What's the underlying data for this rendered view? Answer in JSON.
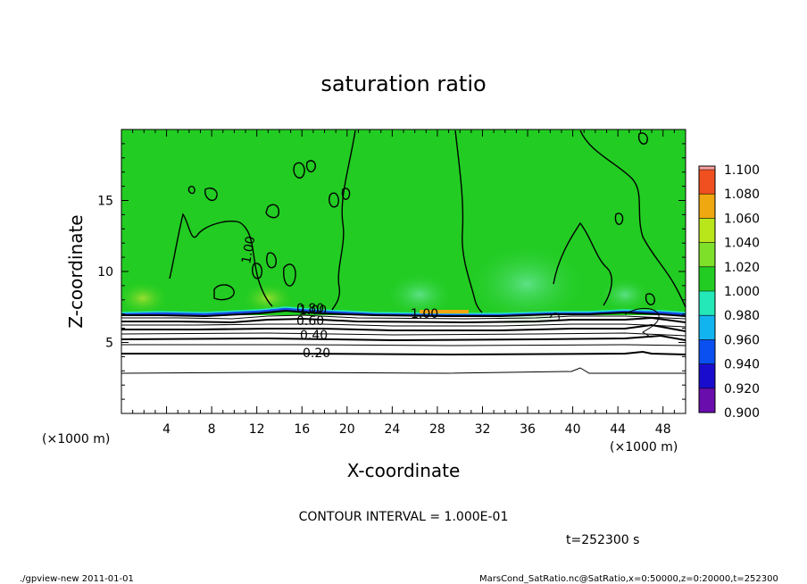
{
  "chart_data": {
    "type": "heatmap",
    "title": "saturation ratio",
    "xlabel": "X-coordinate",
    "ylabel": "Z-coordinate",
    "x_unit": "(×1000 m)",
    "y_unit": "(×1000 m)",
    "xlim": [
      0,
      50
    ],
    "ylim": [
      0,
      20
    ],
    "x_ticks": [
      4,
      8,
      12,
      16,
      20,
      24,
      28,
      32,
      36,
      40,
      44,
      48
    ],
    "x_tick_labels": [
      "4",
      "8",
      "12",
      "16",
      "20",
      "24",
      "28",
      "32",
      "36",
      "40",
      "44",
      "48"
    ],
    "y_ticks": [
      5,
      10,
      15
    ],
    "y_tick_labels": [
      "5",
      "10",
      "15"
    ],
    "colorbar": {
      "levels": [
        0.9,
        0.92,
        0.94,
        0.96,
        0.98,
        1.0,
        1.02,
        1.04,
        1.06,
        1.08,
        1.1
      ],
      "labels": [
        "0.900",
        "0.920",
        "0.940",
        "0.960",
        "0.980",
        "1.000",
        "1.020",
        "1.040",
        "1.060",
        "1.080",
        "1.100"
      ],
      "colors": [
        "#6a0dad",
        "#1a0ccc",
        "#0a4ff0",
        "#12b4f0",
        "#24e8b8",
        "#22cc22",
        "#7fe02a",
        "#b8e61a",
        "#f0a810",
        "#f05020",
        "#f8a0a0"
      ]
    },
    "contour_labels": [
      "1.00",
      "0.80",
      "0.60",
      "0.40",
      "0.20",
      "1.00",
      "1.00"
    ],
    "contour_levels_lower": [
      0.2,
      0.3,
      0.4,
      0.5,
      0.6,
      0.7,
      0.8,
      0.9
    ],
    "field_summary": {
      "upper_region_value": 1.0,
      "cloud_base_height": 7.0,
      "lower_region": "decreasing saturation ratio toward the surface"
    },
    "contour_interval_text": "CONTOUR INTERVAL = 1.000E-01",
    "time_text": "t=252300 s"
  },
  "footer": {
    "left": "./gpview-new   2011-01-01",
    "right": "MarsCond_SatRatio.nc@SatRatio,x=0:50000,z=0:20000,t=252300"
  }
}
